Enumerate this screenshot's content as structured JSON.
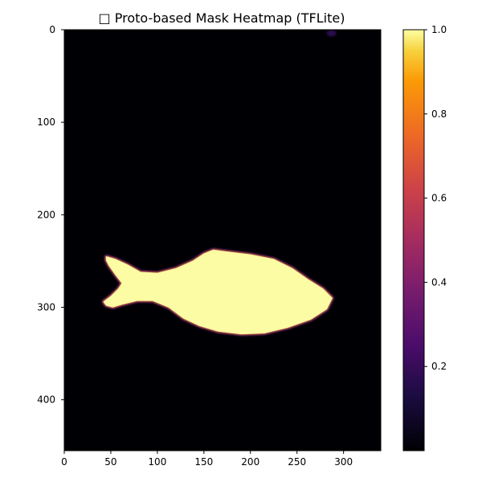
{
  "chart_data": {
    "type": "heatmap",
    "title": "□ Proto-based Mask Heatmap (TFLite)",
    "xlabel": "",
    "ylabel": "",
    "xlim": [
      0,
      340
    ],
    "ylim": [
      455,
      0
    ],
    "x_ticks": [
      0,
      50,
      100,
      150,
      200,
      250,
      300
    ],
    "y_ticks": [
      0,
      100,
      200,
      300,
      400
    ],
    "colormap": "inferno",
    "colorbar": {
      "range": [
        0.0,
        1.0
      ],
      "ticks": [
        0.2,
        0.4,
        0.6,
        0.8,
        1.0
      ],
      "tick_labels": [
        "0.2",
        "0.4",
        "0.6",
        "0.8",
        "1.0"
      ]
    },
    "background_value": 0.0,
    "mask": {
      "label": "fish",
      "value": 1.0,
      "outline": [
        [
          45,
          245
        ],
        [
          55,
          248
        ],
        [
          68,
          254
        ],
        [
          82,
          262
        ],
        [
          100,
          263
        ],
        [
          120,
          258
        ],
        [
          138,
          250
        ],
        [
          150,
          242
        ],
        [
          160,
          238
        ],
        [
          175,
          240
        ],
        [
          200,
          243
        ],
        [
          225,
          248
        ],
        [
          245,
          258
        ],
        [
          262,
          270
        ],
        [
          278,
          280
        ],
        [
          288,
          290
        ],
        [
          282,
          302
        ],
        [
          265,
          313
        ],
        [
          240,
          322
        ],
        [
          215,
          328
        ],
        [
          190,
          329
        ],
        [
          165,
          326
        ],
        [
          145,
          320
        ],
        [
          128,
          312
        ],
        [
          112,
          300
        ],
        [
          95,
          293
        ],
        [
          78,
          293
        ],
        [
          62,
          297
        ],
        [
          52,
          300
        ],
        [
          45,
          298
        ],
        [
          42,
          294
        ],
        [
          50,
          288
        ],
        [
          58,
          280
        ],
        [
          62,
          274
        ],
        [
          55,
          265
        ],
        [
          48,
          255
        ],
        [
          45,
          249
        ]
      ]
    },
    "artifact": {
      "x": 287,
      "y": 2,
      "value": 0.15
    }
  }
}
